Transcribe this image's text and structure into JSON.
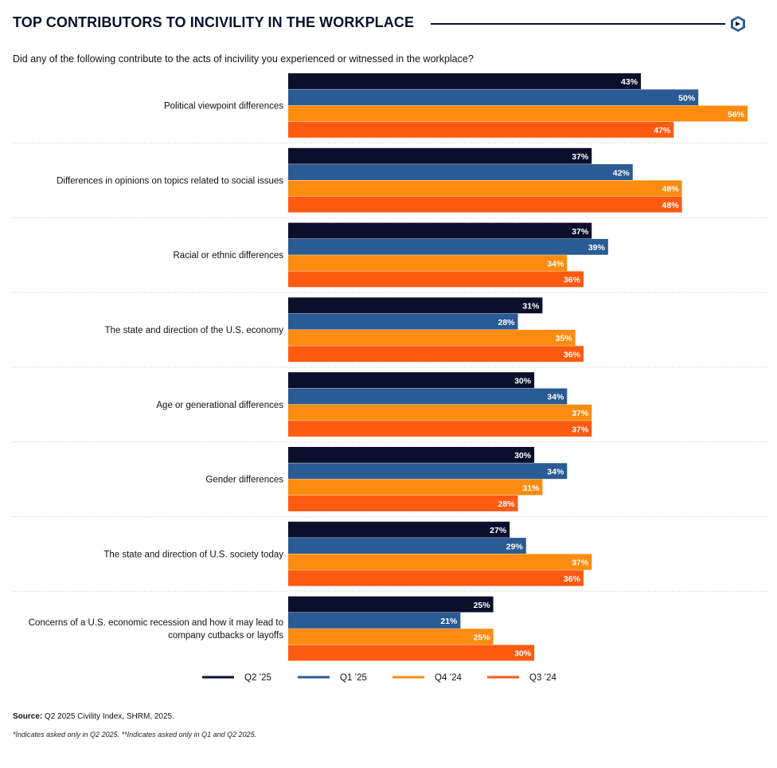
{
  "header": {
    "title": "TOP CONTRIBUTORS TO INCIVILITY IN THE WORKPLACE",
    "question": "Did any of the following contribute to the acts of incivility you experienced or witnessed in the workplace?"
  },
  "logo_icon": "hexagon-chevron-logo",
  "colors": {
    "q2_25": "#0c0f2c",
    "q1_25": "#2a5b94",
    "q4_24": "#fc8c10",
    "q3_24": "#fd5a12",
    "brand": "#0c0f2c"
  },
  "chart_data": {
    "type": "bar",
    "orientation": "horizontal",
    "title": "TOP CONTRIBUTORS TO INCIVILITY IN THE WORKPLACE",
    "xlabel": "",
    "ylabel": "",
    "xlim": [
      0,
      56
    ],
    "value_suffix": "%",
    "categories": [
      [
        "Political viewpoint differences"
      ],
      [
        "Differences in opinions on topics related to social issues"
      ],
      [
        "Racial or ethnic differences"
      ],
      [
        "The state and direction of the U.S. economy"
      ],
      [
        "Age or generational differences"
      ],
      [
        "Gender differences"
      ],
      [
        "The state and direction of U.S. society today"
      ],
      [
        "Concerns of a U.S. economic recession and how it may lead to",
        "company cutbacks or layoffs"
      ]
    ],
    "series": [
      {
        "name": "Q2 ’25",
        "key": "q2_25",
        "values": [
          43,
          37,
          37,
          31,
          30,
          30,
          27,
          25
        ]
      },
      {
        "name": "Q1 ’25",
        "key": "q1_25",
        "values": [
          50,
          42,
          39,
          28,
          34,
          34,
          29,
          21
        ]
      },
      {
        "name": "Q4 ’24",
        "key": "q4_24",
        "values": [
          56,
          48,
          34,
          35,
          37,
          31,
          37,
          25
        ]
      },
      {
        "name": "Q3 ’24",
        "key": "q3_24",
        "values": [
          47,
          48,
          36,
          36,
          37,
          28,
          36,
          30
        ]
      }
    ],
    "legend": "bottom-center"
  },
  "footer": {
    "source_label": "Source:",
    "source_text": " Q2 2025 Civility Index, SHRM, 2025.",
    "note": "*Indicates asked only in Q2 2025. **Indicates asked only in Q1 and Q2 2025."
  }
}
